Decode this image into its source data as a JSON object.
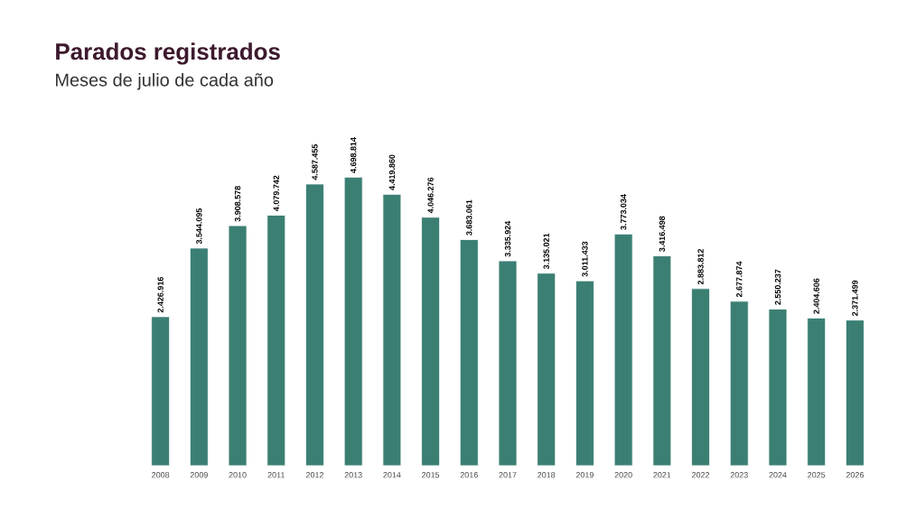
{
  "chart_data": {
    "type": "bar",
    "title": "Parados registrados",
    "subtitle": "Meses de julio de cada año",
    "categories": [
      "2008",
      "2009",
      "2010",
      "2011",
      "2012",
      "2013",
      "2014",
      "2015",
      "2016",
      "2017",
      "2018",
      "2019",
      "2020",
      "2021",
      "2022",
      "2023",
      "2024",
      "2025",
      "2026"
    ],
    "values": [
      2426916,
      3544095,
      3908578,
      4079742,
      4587455,
      4698814,
      4419860,
      4046276,
      3683061,
      3335924,
      3135021,
      3011433,
      3773034,
      3416498,
      2883812,
      2677874,
      2550237,
      2404606,
      2371499
    ],
    "value_labels": [
      "2.426.916",
      "3.544.095",
      "3.908.578",
      "4.079.742",
      "4.587.455",
      "4.698.814",
      "4.419.860",
      "4.046.276",
      "3.683.061",
      "3.335.924",
      "3.135.021",
      "3.011.433",
      "3.773.034",
      "3.416.498",
      "2.883.812",
      "2.677.874",
      "2.550.237",
      "2.404.606",
      "2.371.499"
    ],
    "color": "#3b7f73"
  }
}
